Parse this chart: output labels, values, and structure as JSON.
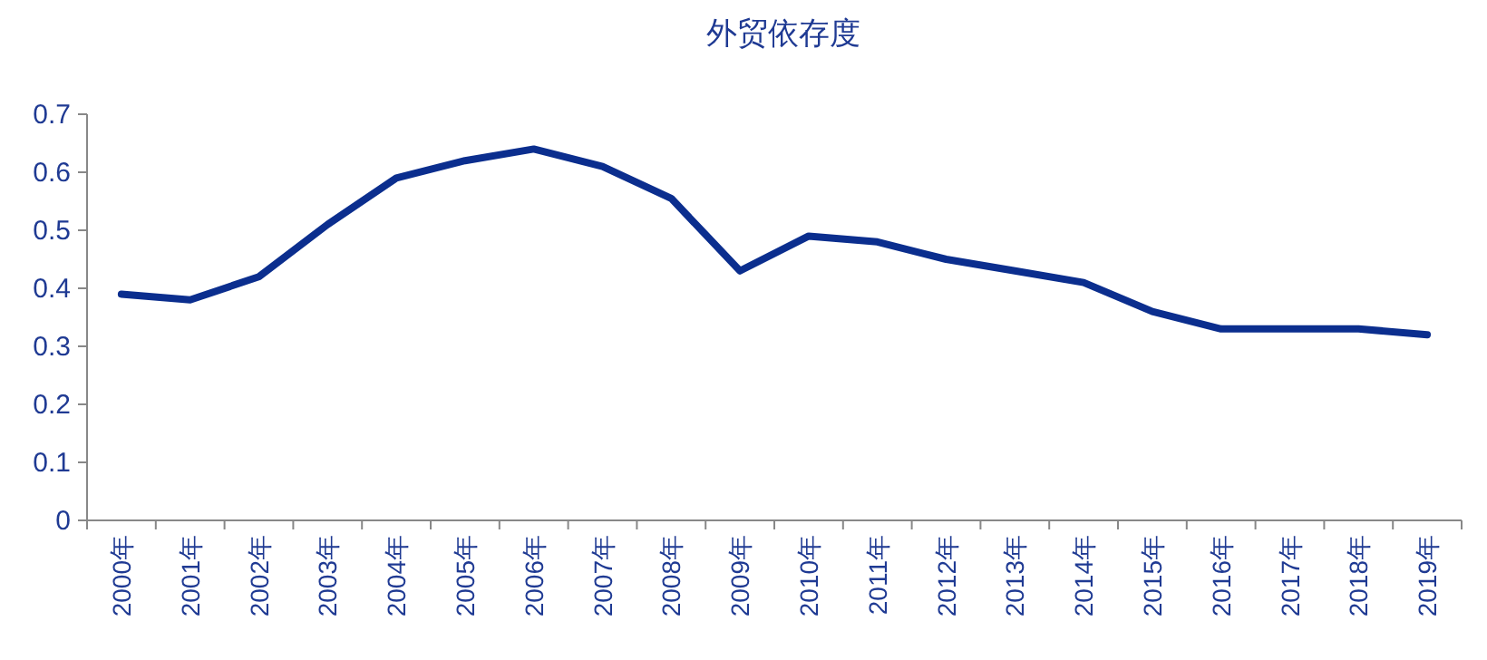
{
  "chart_data": {
    "type": "line",
    "title": "外贸依存度",
    "categories": [
      "2000年",
      "2001年",
      "2002年",
      "2003年",
      "2004年",
      "2005年",
      "2006年",
      "2007年",
      "2008年",
      "2009年",
      "2010年",
      "2011年",
      "2012年",
      "2013年",
      "2014年",
      "2015年",
      "2016年",
      "2017年",
      "2018年",
      "2019年"
    ],
    "series": [
      {
        "color": "#0b2e8e",
        "values": [
          0.39,
          0.38,
          0.42,
          0.51,
          0.59,
          0.62,
          0.64,
          0.61,
          0.555,
          0.43,
          0.49,
          0.48,
          0.45,
          0.43,
          0.41,
          0.36,
          0.33,
          0.33,
          0.33,
          0.32
        ]
      }
    ],
    "ylim": [
      0,
      0.7
    ],
    "yticks": [
      0,
      0.1,
      0.2,
      0.3,
      0.4,
      0.5,
      0.6,
      0.7
    ],
    "grid": false,
    "marker": "none",
    "line_style": "solid"
  }
}
